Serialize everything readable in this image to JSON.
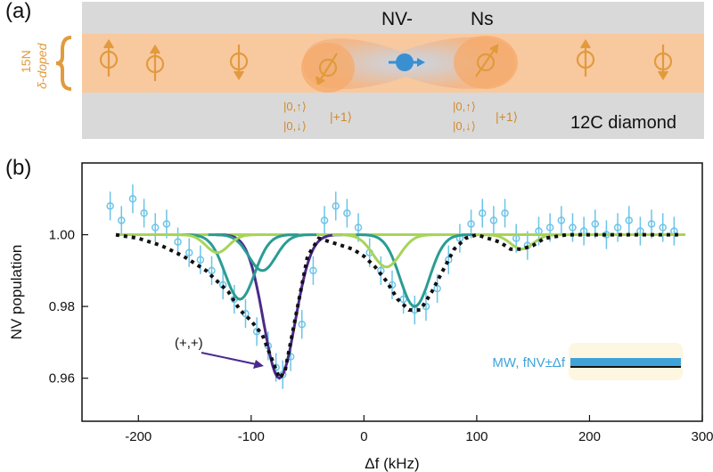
{
  "panel_a": {
    "label": "(a)",
    "layer_label_line1": "15N",
    "layer_label_line2": "δ-doped",
    "nv_label": "NV-",
    "ns_label": "Ns",
    "state_left": [
      "|0,↑⟩",
      "|0,↓⟩",
      "|+1⟩"
    ],
    "state_right": [
      "|0,↑⟩",
      "|0,↓⟩",
      "|+1⟩"
    ],
    "substrate_label": "12C diamond"
  },
  "chart_data": {
    "type": "scatter",
    "panel_label": "(b)",
    "xlabel": "Δf (kHz)",
    "ylabel": "NV population",
    "xlim": [
      -250,
      300
    ],
    "ylim": [
      0.948,
      1.02
    ],
    "x_ticks": [
      -200,
      -100,
      0,
      100,
      200,
      300
    ],
    "y_ticks": [
      0.96,
      0.98,
      1.0
    ],
    "y_tick_labels": [
      "0.96",
      "0.98",
      "1.00"
    ],
    "annotation": "(+,+)",
    "legend_text": "MW, fNV±Δf",
    "colors": {
      "data": "#6cc4e8",
      "total_fit": "#111111",
      "component_dark": "#4a2a8c",
      "component_teal": "#2a9c94",
      "component_light": "#a8d45a",
      "orange": "#e29a3c"
    },
    "series": [
      {
        "name": "data",
        "x": [
          -225,
          -215,
          -205,
          -195,
          -185,
          -175,
          -165,
          -155,
          -145,
          -135,
          -125,
          -115,
          -105,
          -95,
          -85,
          -78,
          -72,
          -65,
          -55,
          -45,
          -35,
          -25,
          -15,
          -5,
          5,
          15,
          25,
          35,
          45,
          55,
          65,
          75,
          85,
          95,
          105,
          115,
          125,
          135,
          145,
          155,
          165,
          175,
          185,
          195,
          205,
          215,
          225,
          235,
          245,
          255,
          265,
          275
        ],
        "y": [
          1.008,
          1.004,
          1.01,
          1.006,
          1.002,
          1.003,
          0.998,
          0.995,
          0.993,
          0.99,
          0.986,
          0.982,
          0.978,
          0.973,
          0.969,
          0.963,
          0.961,
          0.966,
          0.975,
          0.99,
          1.004,
          1.008,
          1.006,
          1.002,
          0.995,
          0.99,
          0.986,
          0.982,
          0.979,
          0.98,
          0.985,
          0.993,
          0.999,
          1.003,
          1.006,
          1.004,
          1.006,
          0.999,
          0.997,
          1.001,
          1.002,
          1.004,
          1.002,
          1.001,
          1.003,
          1.0,
          1.002,
          1.004,
          1.001,
          1.003,
          1.002,
          1.001
        ]
      },
      {
        "name": "total fit",
        "x": [
          -220,
          -200,
          -180,
          -160,
          -140,
          -120,
          -110,
          -100,
          -90,
          -80,
          -75,
          -70,
          -60,
          -50,
          -40,
          -30,
          -20,
          -10,
          0,
          10,
          20,
          30,
          40,
          50,
          60,
          70,
          80,
          90,
          100,
          110,
          120,
          130,
          140,
          150,
          160,
          180,
          200,
          220,
          240,
          260,
          280
        ],
        "y": [
          1.0,
          0.999,
          0.997,
          0.994,
          0.99,
          0.984,
          0.979,
          0.976,
          0.972,
          0.964,
          0.96,
          0.962,
          0.978,
          0.994,
          0.999,
          0.998,
          0.997,
          0.996,
          0.994,
          0.991,
          0.987,
          0.982,
          0.979,
          0.979,
          0.984,
          0.99,
          0.996,
          0.999,
          1.0,
          0.999,
          0.998,
          0.996,
          0.996,
          0.997,
          0.999,
          1.0,
          1.0,
          1.0,
          1.0,
          1.0,
          1.0
        ]
      },
      {
        "name": "(+,+)",
        "center": -75,
        "depth": 0.04,
        "width": 14
      },
      {
        "name": "component 2",
        "center": -110,
        "depth": 0.018,
        "width": 13
      },
      {
        "name": "component 3",
        "center": -90,
        "depth": 0.01,
        "width": 12
      },
      {
        "name": "component 4",
        "center": 45,
        "depth": 0.02,
        "width": 13
      },
      {
        "name": "component 5",
        "center": 20,
        "depth": 0.009,
        "width": 12
      },
      {
        "name": "component 6",
        "center": -130,
        "depth": 0.005,
        "width": 10
      },
      {
        "name": "component 7",
        "center": 140,
        "depth": 0.004,
        "width": 10
      }
    ]
  }
}
